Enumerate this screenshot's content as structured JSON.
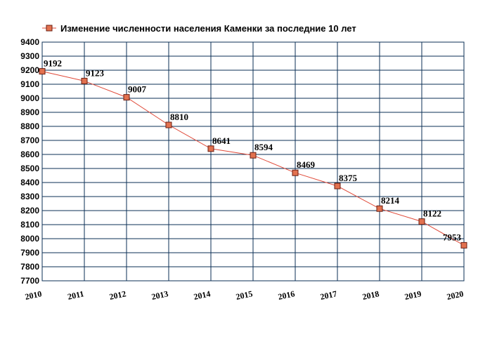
{
  "chart_data": {
    "type": "line",
    "x": [
      "2010",
      "2011",
      "2012",
      "2013",
      "2014",
      "2015",
      "2016",
      "2017",
      "2018",
      "2019",
      "2020"
    ],
    "series": [
      {
        "name": "Изменение численности населения Каменки за последние 10 лет",
        "values": [
          9192,
          9123,
          9007,
          8810,
          8641,
          8594,
          8469,
          8375,
          8214,
          8122,
          7953
        ]
      }
    ],
    "ylim": [
      7700,
      9400
    ],
    "yticks": [
      7700,
      7800,
      7900,
      8000,
      8100,
      8200,
      8300,
      8400,
      8500,
      8600,
      8700,
      8800,
      8900,
      9000,
      9100,
      9200,
      9300,
      9400
    ],
    "grid": true,
    "legend_position": "top-left",
    "colors": {
      "line": "#e04b3a",
      "marker": "#e2714f",
      "grid": "#0b2f55"
    }
  }
}
